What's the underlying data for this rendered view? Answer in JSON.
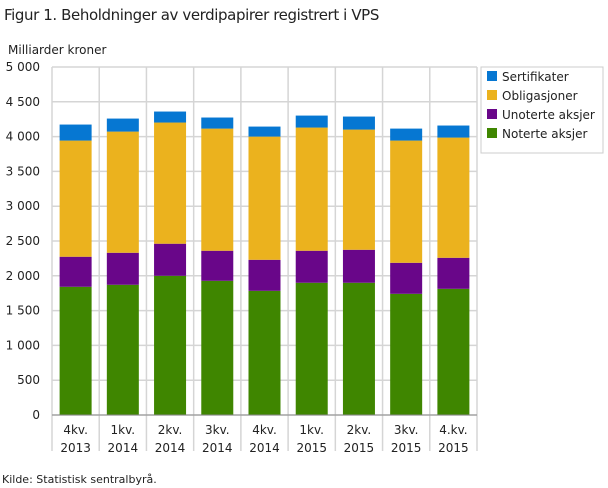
{
  "chart_data": {
    "type": "bar",
    "stacked": true,
    "title": "Figur 1. Beholdninger av verdipapirer registrert i VPS",
    "ylabel": "Milliarder  kroner",
    "xlabel": "",
    "ylim": [
      0,
      5000
    ],
    "yticks": [
      0,
      500,
      1000,
      1500,
      2000,
      2500,
      3000,
      3500,
      4000,
      4500,
      5000
    ],
    "ytick_labels": [
      "0",
      "500",
      "1 000",
      "1 500",
      "2 000",
      "2 500",
      "3 000",
      "3 500",
      "4 000",
      "4 500",
      "5 000"
    ],
    "categories": [
      [
        "4kv.",
        "2013"
      ],
      [
        "1kv.",
        "2014"
      ],
      [
        "2kv.",
        "2014"
      ],
      [
        "3kv.",
        "2014"
      ],
      [
        "4kv.",
        "2014"
      ],
      [
        "1kv.",
        "2015"
      ],
      [
        "2kv.",
        "2015"
      ],
      [
        "3kv.",
        "2015"
      ],
      [
        "4.kv.",
        "2015"
      ]
    ],
    "grid": true,
    "legend_position": "top-right",
    "series": [
      {
        "name": "Noterte aksjer",
        "color": "#3f8600",
        "values": [
          1842,
          1871,
          2000,
          1928,
          1784,
          1900,
          1900,
          1741,
          1813
        ]
      },
      {
        "name": "Unoterte aksjer",
        "color": "#690689",
        "values": [
          432,
          460,
          461,
          432,
          446,
          460,
          474,
          446,
          446
        ]
      },
      {
        "name": "Obligasjoner",
        "color": "#ebb21e",
        "values": [
          1669,
          1741,
          1741,
          1755,
          1770,
          1770,
          1727,
          1756,
          1727
        ]
      },
      {
        "name": "Sertifikater",
        "color": "#0677d2",
        "values": [
          230,
          187,
          158,
          159,
          144,
          172,
          187,
          172,
          173
        ]
      }
    ],
    "source": "Kilde: Statistisk sentralbyrå."
  }
}
